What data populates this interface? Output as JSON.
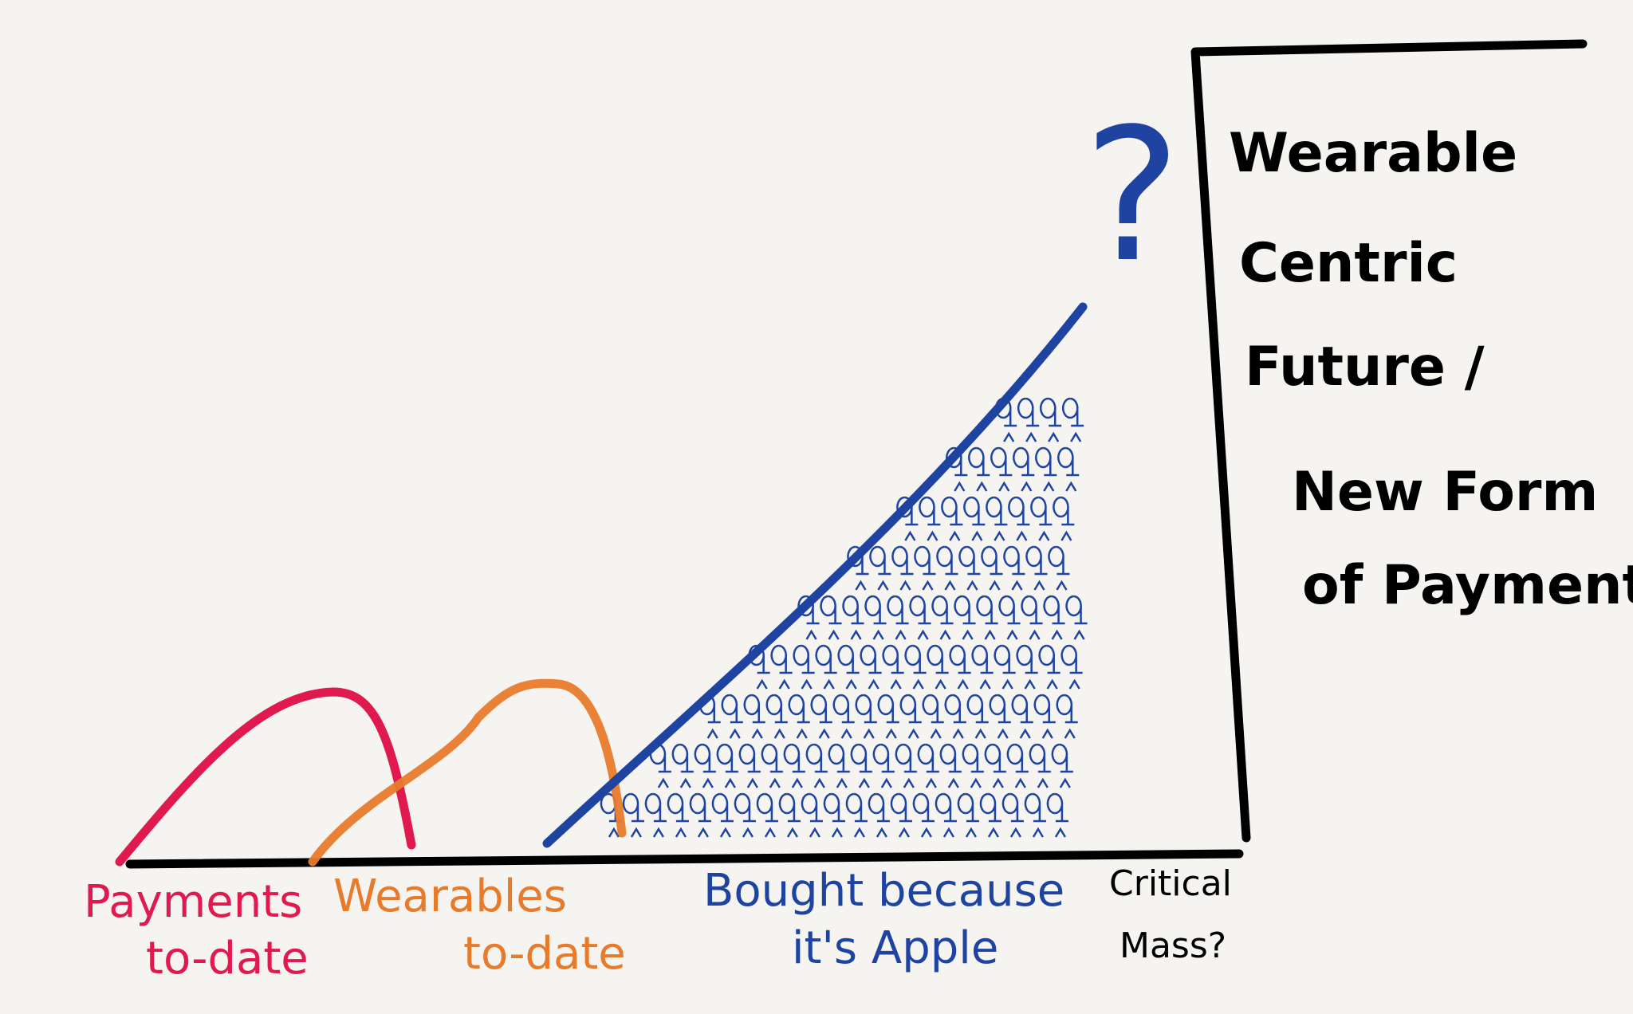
{
  "axis_labels": [
    [
      "Payments",
      "to-date"
    ],
    [
      "Wearables",
      "to-date"
    ],
    [
      "Bought because",
      "it's Apple"
    ],
    [
      "Critical",
      "Mass?"
    ]
  ],
  "question_mark": "?",
  "box_text": [
    "Wearable",
    "Centric",
    "Future /",
    "New Form",
    "of Payments"
  ]
}
